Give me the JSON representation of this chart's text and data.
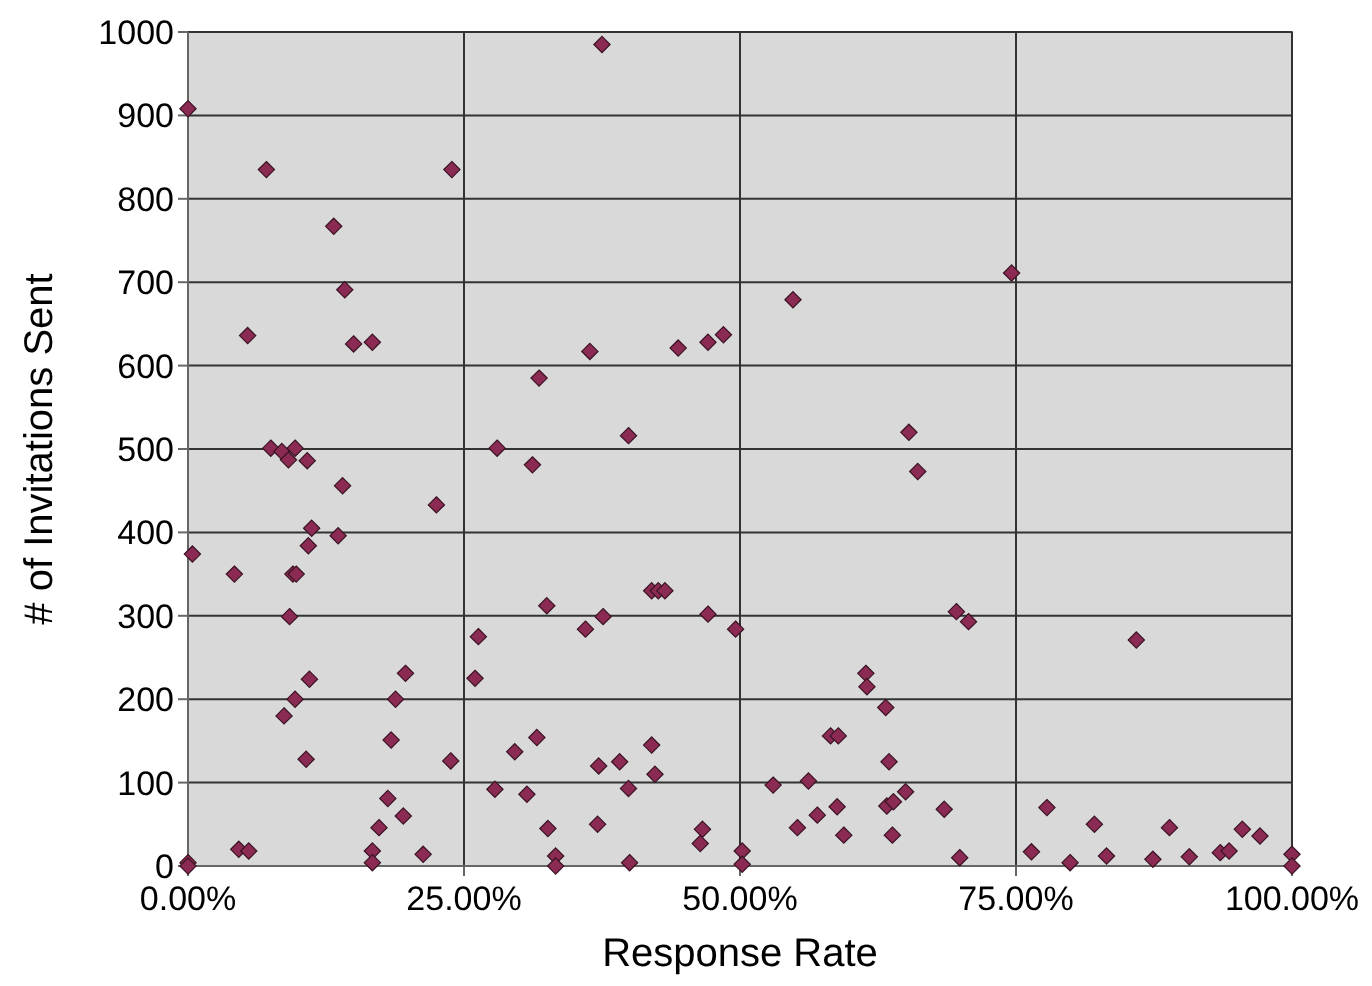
{
  "chart_data": {
    "type": "scatter",
    "xlabel": "Response Rate",
    "ylabel": "# of Invitations Sent",
    "marker": "diamond",
    "grid": true,
    "xlim": [
      0,
      100
    ],
    "xticks": [
      {
        "value": 0,
        "label": "0.00%"
      },
      {
        "value": 25,
        "label": "25.00%"
      },
      {
        "value": 50,
        "label": "50.00%"
      },
      {
        "value": 75,
        "label": "75.00%"
      },
      {
        "value": 100,
        "label": "100.00%"
      }
    ],
    "ylim": [
      0,
      1000
    ],
    "yticks": [
      0,
      100,
      200,
      300,
      400,
      500,
      600,
      700,
      800,
      900,
      1000
    ],
    "series": [
      {
        "color": "#8b2a52",
        "x": [
          0,
          7.1,
          23.9,
          13.2,
          14.2,
          5.4,
          15.0,
          16.7,
          7.5,
          8.5,
          9.7,
          9.1,
          10.8,
          14.0,
          22.5,
          11.2,
          13.6,
          10.9,
          0.4,
          4.2,
          9.5,
          9.8,
          9.2,
          19.7,
          11.0,
          9.7,
          18.8,
          8.7,
          18.4,
          10.7,
          23.8,
          18.1,
          19.5,
          17.3,
          4.6,
          5.5,
          16.7,
          16.7,
          21.3,
          0,
          0,
          37.5,
          36.4,
          31.8,
          44.4,
          47.1,
          48.5,
          39.9,
          28.0,
          31.2,
          42.0,
          42.6,
          43.2,
          32.5,
          47.1,
          37.6,
          36.0,
          49.6,
          26.3,
          26.0,
          31.6,
          29.6,
          42.0,
          39.1,
          37.2,
          42.3,
          27.8,
          30.7,
          39.9,
          32.6,
          37.1,
          46.6,
          46.4,
          33.3,
          33.3,
          40.0,
          50.2,
          50.2,
          54.8,
          74.6,
          65.3,
          66.1,
          69.6,
          70.7,
          61.4,
          61.5,
          63.2,
          58.2,
          58.9,
          63.5,
          53.0,
          56.2,
          65.0,
          63.3,
          63.9,
          58.8,
          57.0,
          68.5,
          55.2,
          59.4,
          63.8,
          69.9,
          85.9,
          77.8,
          82.1,
          88.9,
          95.5,
          97.1,
          76.4,
          79.9,
          83.2,
          87.4,
          90.7,
          93.5,
          94.3,
          100,
          100
        ],
        "values": [
          908,
          835,
          835,
          767,
          691,
          636,
          626,
          628,
          501,
          497,
          501,
          487,
          486,
          456,
          433,
          405,
          396,
          384,
          374,
          350,
          350,
          350,
          299,
          231,
          224,
          200,
          200,
          180,
          151,
          128,
          126,
          81,
          60,
          46,
          20,
          18,
          18,
          4,
          14,
          4,
          0,
          985,
          617,
          585,
          621,
          628,
          637,
          516,
          501,
          481,
          330,
          330,
          330,
          312,
          302,
          299,
          284,
          284,
          275,
          225,
          154,
          137,
          145,
          125,
          120,
          110,
          92,
          86,
          93,
          45,
          50,
          44,
          27,
          12,
          0,
          4,
          18,
          2,
          679,
          711,
          520,
          473,
          305,
          293,
          231,
          215,
          190,
          156,
          156,
          125,
          97,
          102,
          89,
          72,
          77,
          71,
          61,
          68,
          46,
          37,
          37,
          10,
          271,
          70,
          50,
          46,
          44,
          36,
          17,
          4,
          12,
          8,
          11,
          16,
          18,
          14,
          0
        ]
      }
    ]
  }
}
